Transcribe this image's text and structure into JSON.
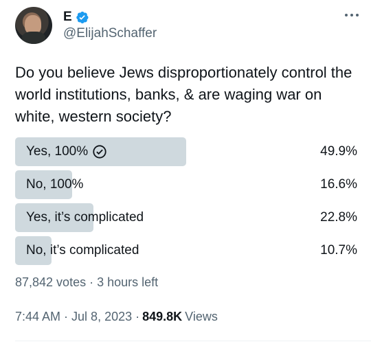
{
  "author": {
    "name": "E",
    "handle": "@ElijahSchaffer",
    "verified": true,
    "badge_color": "#1d9bf0"
  },
  "tweet": {
    "text": "Do you believe Jews disproportionately control the world institutions, banks, & are waging war on white, western society?"
  },
  "poll": {
    "options": [
      {
        "label": "Yes, 100%",
        "percent_text": "49.9%",
        "percent": 49.9,
        "winner": true
      },
      {
        "label": "No, 100%",
        "percent_text": "16.6%",
        "percent": 16.6,
        "winner": false
      },
      {
        "label": "Yes, it’s complicated",
        "percent_text": "22.8%",
        "percent": 22.8,
        "winner": false
      },
      {
        "label": "No, it’s complicated",
        "percent_text": "10.7%",
        "percent": 10.7,
        "winner": false
      }
    ],
    "votes": "87,842 votes",
    "separator": "·",
    "time_left": "3 hours left"
  },
  "footer": {
    "time": "7:44 AM",
    "separator": "·",
    "date": "Jul 8, 2023",
    "separator2": "·",
    "views_count": "849.8K",
    "views_label": "Views"
  },
  "icons": {
    "more": "more-horizontal-icon",
    "verified": "verified-badge-icon",
    "winner": "check-circle-icon"
  },
  "colors": {
    "bar": "#cfd9de",
    "secondary_text": "#536471",
    "primary_text": "#0f1419"
  }
}
